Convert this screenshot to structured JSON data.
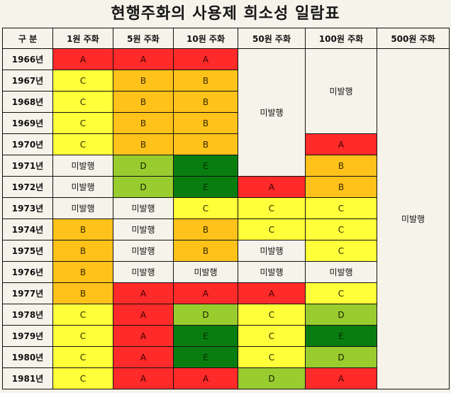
{
  "title": "현행주화의 사용제 희소성 일람표",
  "header": [
    "구 분",
    "1원 주화",
    "5원 주화",
    "10원 주화",
    "50원 주화",
    "100원 주화",
    "500원 주화"
  ],
  "not_issued": "미발행",
  "rows": [
    {
      "year": "1966년",
      "c1": "A",
      "c5": "A",
      "c10": "A"
    },
    {
      "year": "1967년",
      "c1": "C",
      "c5": "B",
      "c10": "B"
    },
    {
      "year": "1968년",
      "c1": "C",
      "c5": "B",
      "c10": "B"
    },
    {
      "year": "1969년",
      "c1": "C",
      "c5": "B",
      "c10": "B"
    },
    {
      "year": "1970년",
      "c1": "C",
      "c5": "B",
      "c10": "B",
      "c100": "A"
    },
    {
      "year": "1971년",
      "c1": "미발행",
      "c5": "D",
      "c10": "E",
      "c100": "B"
    },
    {
      "year": "1972년",
      "c1": "미발행",
      "c5": "D",
      "c10": "E",
      "c50": "A",
      "c100": "B"
    },
    {
      "year": "1973년",
      "c1": "미발행",
      "c5": "미발행",
      "c10": "C",
      "c50": "C",
      "c100": "C"
    },
    {
      "year": "1974년",
      "c1": "B",
      "c5": "미발행",
      "c10": "B",
      "c50": "C",
      "c100": "C"
    },
    {
      "year": "1975년",
      "c1": "B",
      "c5": "미발행",
      "c10": "B",
      "c50": "미발행",
      "c100": "C"
    },
    {
      "year": "1976년",
      "c1": "B",
      "c5": "미발행",
      "c10": "미발행",
      "c50": "미발행",
      "c100": "미발행"
    },
    {
      "year": "1977년",
      "c1": "B",
      "c5": "A",
      "c10": "A",
      "c50": "A",
      "c100": "C"
    },
    {
      "year": "1978년",
      "c1": "C",
      "c5": "A",
      "c10": "D",
      "c50": "C",
      "c100": "D"
    },
    {
      "year": "1979년",
      "c1": "C",
      "c5": "A",
      "c10": "E",
      "c50": "C",
      "c100": "E"
    },
    {
      "year": "1980년",
      "c1": "C",
      "c5": "A",
      "c10": "E",
      "c50": "C",
      "c100": "D"
    },
    {
      "year": "1981년",
      "c1": "C",
      "c5": "A",
      "c10": "A",
      "c50": "D",
      "c100": "A"
    }
  ],
  "colors": {
    "A": "#ff2a2a",
    "B": "#ffc21a",
    "C": "#ffff3a",
    "D": "#99cc2e",
    "E": "#0a7d10",
    "not_issued": "#f6f3ea"
  }
}
